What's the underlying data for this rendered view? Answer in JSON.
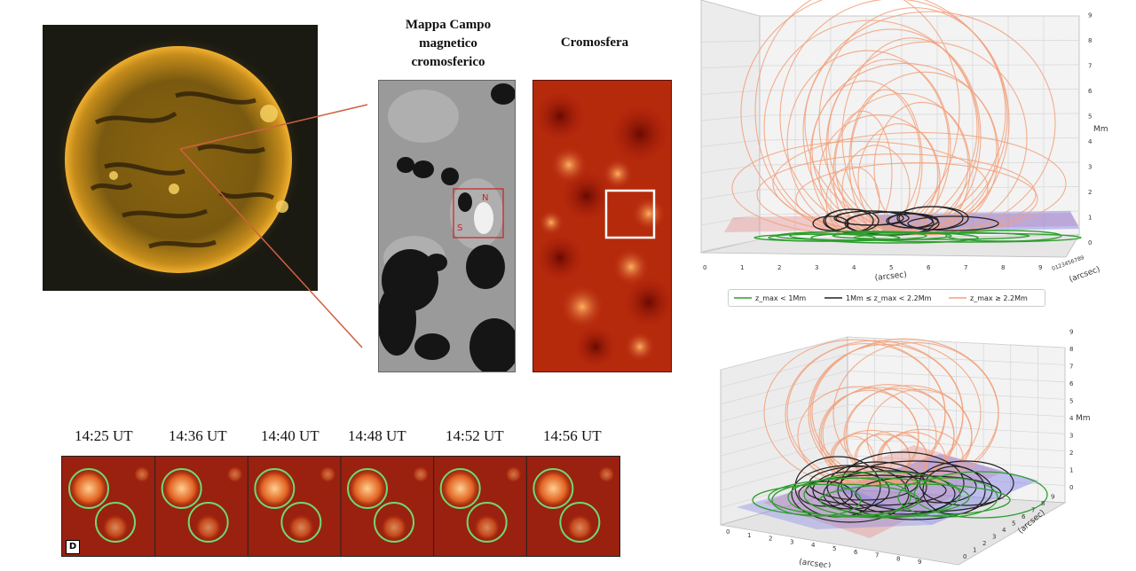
{
  "panels": {
    "magnetic_map_title_lines": [
      "Mappa Campo",
      "magnetico",
      "cromosferico"
    ],
    "chromosphere_title": "Cromosfera",
    "polarity_north": "N",
    "polarity_south": "S",
    "timeline_label": "D",
    "times": [
      "14:25 UT",
      "14:36 UT",
      "14:40 UT",
      "14:48 UT",
      "14:52 UT",
      "14:56 UT"
    ]
  },
  "plot_top": {
    "x_ticks": [
      "0",
      "1",
      "2",
      "3",
      "4",
      "5",
      "6",
      "7",
      "8",
      "9"
    ],
    "x_label": "(arcsec)",
    "z_ticks": [
      "0",
      "1",
      "2",
      "3",
      "4",
      "5",
      "6",
      "7",
      "8",
      "9"
    ],
    "z_label": "Mm",
    "y_ticks_compressed": "0123456789",
    "y_label": "(arcsec)"
  },
  "legend": {
    "items": [
      {
        "label": "z_max < 1Mm",
        "color": "#2e9e2e"
      },
      {
        "label": "1Mm ≤ z_max < 2.2Mm",
        "color": "#222222"
      },
      {
        "label": "z_max ≥ 2.2Mm",
        "color": "#f2a07a"
      }
    ]
  },
  "plot_bottom": {
    "z_ticks": [
      "0",
      "1",
      "2",
      "3",
      "4",
      "5",
      "6",
      "7",
      "8",
      "9"
    ],
    "z_label": "Mm",
    "x_label": "(arcsec)",
    "y_label": "(arcsec)"
  },
  "colors": {
    "sun_base": "#b8860b",
    "chromo": "#c0280a",
    "loop_orange": "#f2a07a",
    "loop_black": "#222222",
    "loop_green": "#2e9e2e",
    "plane_blue": "#7f7fe8",
    "plane_red": "#e87f7f"
  }
}
